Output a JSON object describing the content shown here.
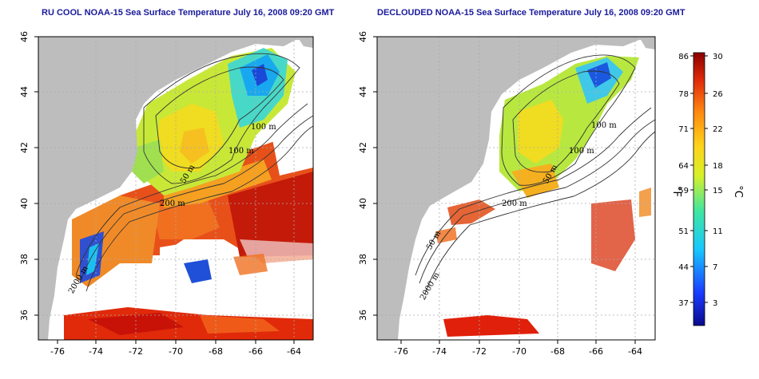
{
  "titles": {
    "left": "RU COOL NOAA-15 Sea Surface Temperature July 16, 2008 09:20 GMT",
    "right": "DECLOUDED NOAA-15 Sea Surface Temperature July 16, 2008 09:20 GMT"
  },
  "axes": {
    "lon_ticks": [
      "-76",
      "-74",
      "-72",
      "-70",
      "-68",
      "-66",
      "-64"
    ],
    "lat_ticks": [
      "46",
      "44",
      "42",
      "40",
      "38",
      "36"
    ]
  },
  "contour_labels_left": [
    "100 m",
    "100 m",
    "50 m",
    "200 m",
    "2000 m"
  ],
  "contour_labels_right": [
    "100 m",
    "100 m",
    "50 m",
    "200 m",
    "50 m",
    "2000 m"
  ],
  "colorbar": {
    "fahrenheit_ticks": [
      "86",
      "78",
      "71",
      "64",
      "59",
      "51",
      "44",
      "37"
    ],
    "celsius_ticks": [
      "30",
      "26",
      "22",
      "18",
      "15",
      "11",
      "7",
      "3"
    ],
    "unit_f": "°F",
    "unit_c": "°C"
  },
  "colors": {
    "land": "#bdbdbd",
    "title": "#1a1a9c",
    "ocean_blank": "#ffffff"
  }
}
